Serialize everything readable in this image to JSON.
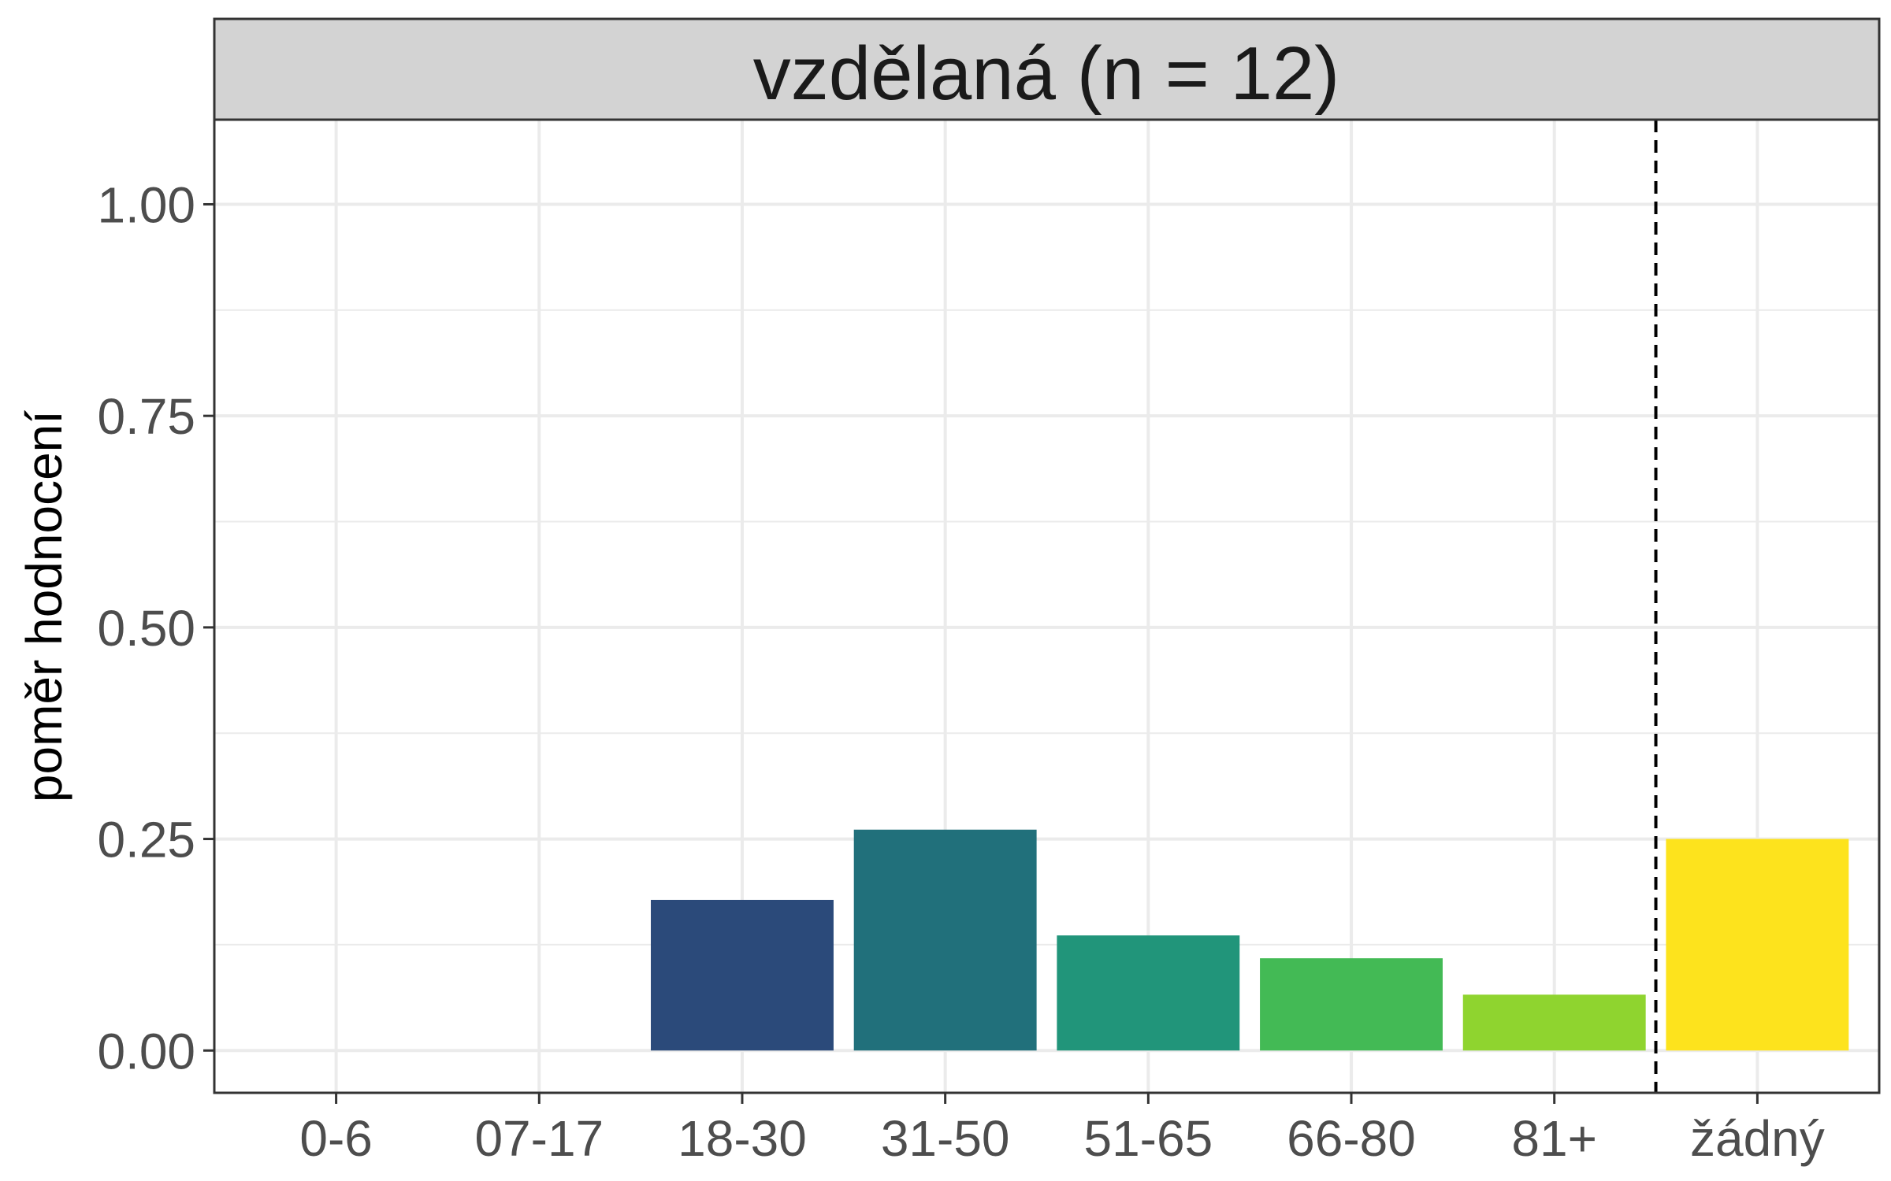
{
  "chart_data": {
    "type": "bar",
    "panel_title": "vzdělaná (n = 12)",
    "xlabel": "",
    "ylabel": "poměr hodnocení",
    "categories": [
      "0-6",
      "07-17",
      "18-30",
      "31-50",
      "51-65",
      "66-80",
      "81+",
      "žádný"
    ],
    "values": [
      0,
      0,
      0.178,
      0.261,
      0.136,
      0.109,
      0.066,
      0.25
    ],
    "colors": [
      "#440154",
      "#46337E",
      "#2B4A7A",
      "#21707B",
      "#21957A",
      "#43BA55",
      "#8FD42F",
      "#FDE31D"
    ],
    "ylim": [
      -0.05,
      1.1
    ],
    "yticks": [
      0,
      0.25,
      0.5,
      0.75,
      1
    ],
    "ytick_labels": [
      "0.00",
      "0.25",
      "0.50",
      "0.75",
      "1.00"
    ],
    "separator_after_category": "81+",
    "grid": true
  }
}
